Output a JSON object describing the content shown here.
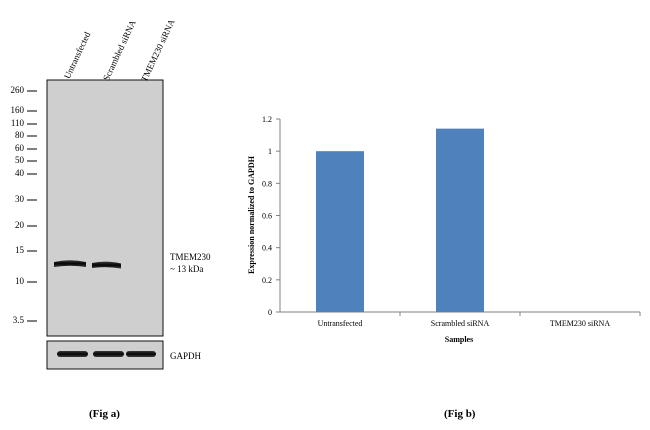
{
  "fig_a": {
    "caption": "(Fig a)",
    "lanes": [
      "Untransfected",
      "Scrambled siRNA",
      "TMEM230 siRNA"
    ],
    "markers": [
      "260",
      "160",
      "110",
      "80",
      "60",
      "50",
      "40",
      "30",
      "20",
      "15",
      "10",
      "3.5"
    ],
    "band_label_line1": "TMEM230",
    "band_label_line2": "~ 13 kDa",
    "loading_control": "GAPDH"
  },
  "fig_b": {
    "caption": "(Fig b)"
  },
  "chart_data": {
    "type": "bar",
    "categories": [
      "Untransfected",
      "Scrambled siRNA",
      "TMEM230 siRNA"
    ],
    "values": [
      1.0,
      1.14,
      0.0
    ],
    "xlabel": "Samples",
    "ylabel": "Expression  normalized to GAPDH",
    "ylim": [
      0,
      1.2
    ],
    "yticks": [
      "0",
      "0.2",
      "0.4",
      "0.6",
      "0.8",
      "1",
      "1.2"
    ],
    "grid": false,
    "legend": "none",
    "bar_color": "#4f81bd"
  }
}
